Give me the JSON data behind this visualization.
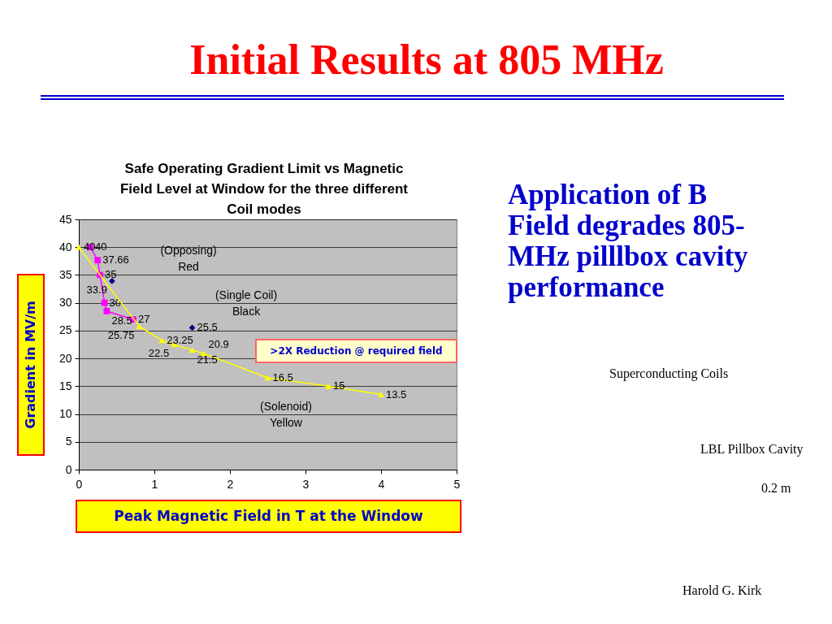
{
  "chart_data": {
    "type": "line",
    "title": "Initial Results at 805 MHz",
    "subtitle": "Safe Operating Gradient Limit vs  Magnetic Field Level at Window for the three different Coil modes",
    "xlabel": "Peak Magnetic Field in T at the Window",
    "ylabel": "Gradient in MV/m",
    "xlim": [
      0,
      5
    ],
    "xticks": [
      0,
      1,
      2,
      3,
      4,
      5
    ],
    "ylim": [
      0,
      45
    ],
    "yticks": [
      0,
      5,
      10,
      15,
      20,
      25,
      30,
      35,
      40,
      45
    ],
    "grid": "y",
    "data_labels": true,
    "series": [
      {
        "marker": "square",
        "color": "#ff00ff",
        "x": [
          0.15,
          0.25,
          0.28,
          0.34,
          0.37,
          0.72
        ],
        "values": [
          40,
          37.66,
          35,
          30,
          28.5,
          27
        ]
      },
      {
        "type": "scatter",
        "marker": "diamond",
        "color": "#000080",
        "x": [
          0.44,
          1.5
        ],
        "values": [
          33.9,
          25.5
        ]
      },
      {
        "marker": "triangle",
        "color": "#ffff00",
        "x": [
          0,
          0.8,
          1.1,
          1.26,
          1.5,
          1.65,
          2.5,
          3.3,
          4.0
        ],
        "values": [
          40,
          25.75,
          23.25,
          22.5,
          21.5,
          20.9,
          16.5,
          15,
          13.5
        ]
      }
    ],
    "annotations": [
      "(Opposing)\nRed",
      "(Single Coil)\nBlack",
      "(Solenoid)\nYellow",
      ">2X Reduction @ required field",
      "Application of B Field degrades 805-MHz pilllbox cavity performance",
      "Superconducting Coils",
      "LBL Pillbox Cavity",
      "0.2 m",
      "Harold G. Kirk"
    ]
  }
}
